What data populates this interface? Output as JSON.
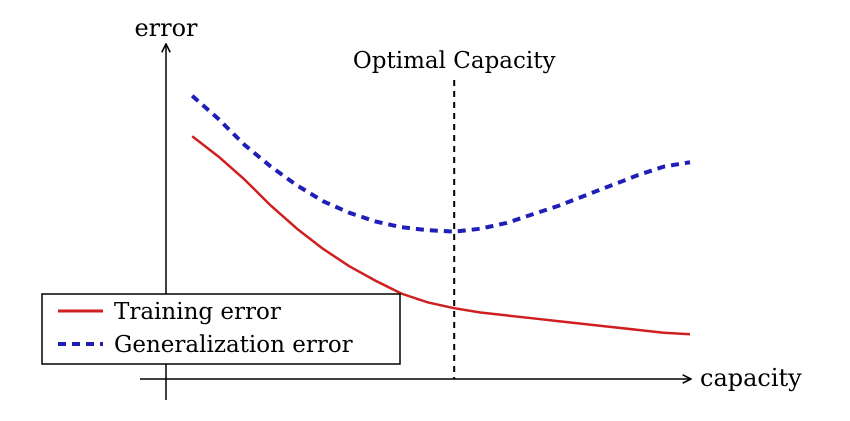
{
  "chart_data": {
    "type": "line",
    "title": "",
    "xlabel": "capacity",
    "ylabel": "error",
    "xlim": [
      0,
      10
    ],
    "ylim": [
      0,
      10
    ],
    "grid": false,
    "legend_position": "bottom-left",
    "series": [
      {
        "name": "Training error",
        "color": "#d01f1f",
        "style": "solid",
        "x": [
          0.5,
          1.0,
          1.5,
          2.0,
          2.5,
          3.0,
          3.5,
          4.0,
          4.5,
          5.0,
          5.5,
          6.0,
          6.5,
          7.0,
          7.5,
          8.0,
          8.5,
          9.0,
          9.5,
          10.0
        ],
        "values": [
          8.4,
          7.7,
          6.9,
          6.0,
          5.2,
          4.5,
          3.9,
          3.4,
          2.95,
          2.65,
          2.45,
          2.3,
          2.2,
          2.1,
          2.0,
          1.9,
          1.8,
          1.7,
          1.6,
          1.55
        ]
      },
      {
        "name": "Generalization error",
        "color": "#1f1fb8",
        "style": "dashed",
        "x": [
          0.5,
          1.0,
          1.5,
          2.0,
          2.5,
          3.0,
          3.5,
          4.0,
          4.5,
          5.0,
          5.5,
          6.0,
          6.5,
          7.0,
          7.5,
          8.0,
          8.5,
          9.0,
          9.5,
          10.0
        ],
        "values": [
          9.8,
          9.0,
          8.1,
          7.35,
          6.7,
          6.15,
          5.75,
          5.45,
          5.25,
          5.15,
          5.1,
          5.2,
          5.4,
          5.7,
          6.0,
          6.35,
          6.7,
          7.05,
          7.35,
          7.5
        ]
      }
    ],
    "annotations": [
      {
        "text": "Optimal Capacity",
        "x": 5.5,
        "style": "dashed-vertical-line",
        "color": "#000000"
      }
    ]
  }
}
